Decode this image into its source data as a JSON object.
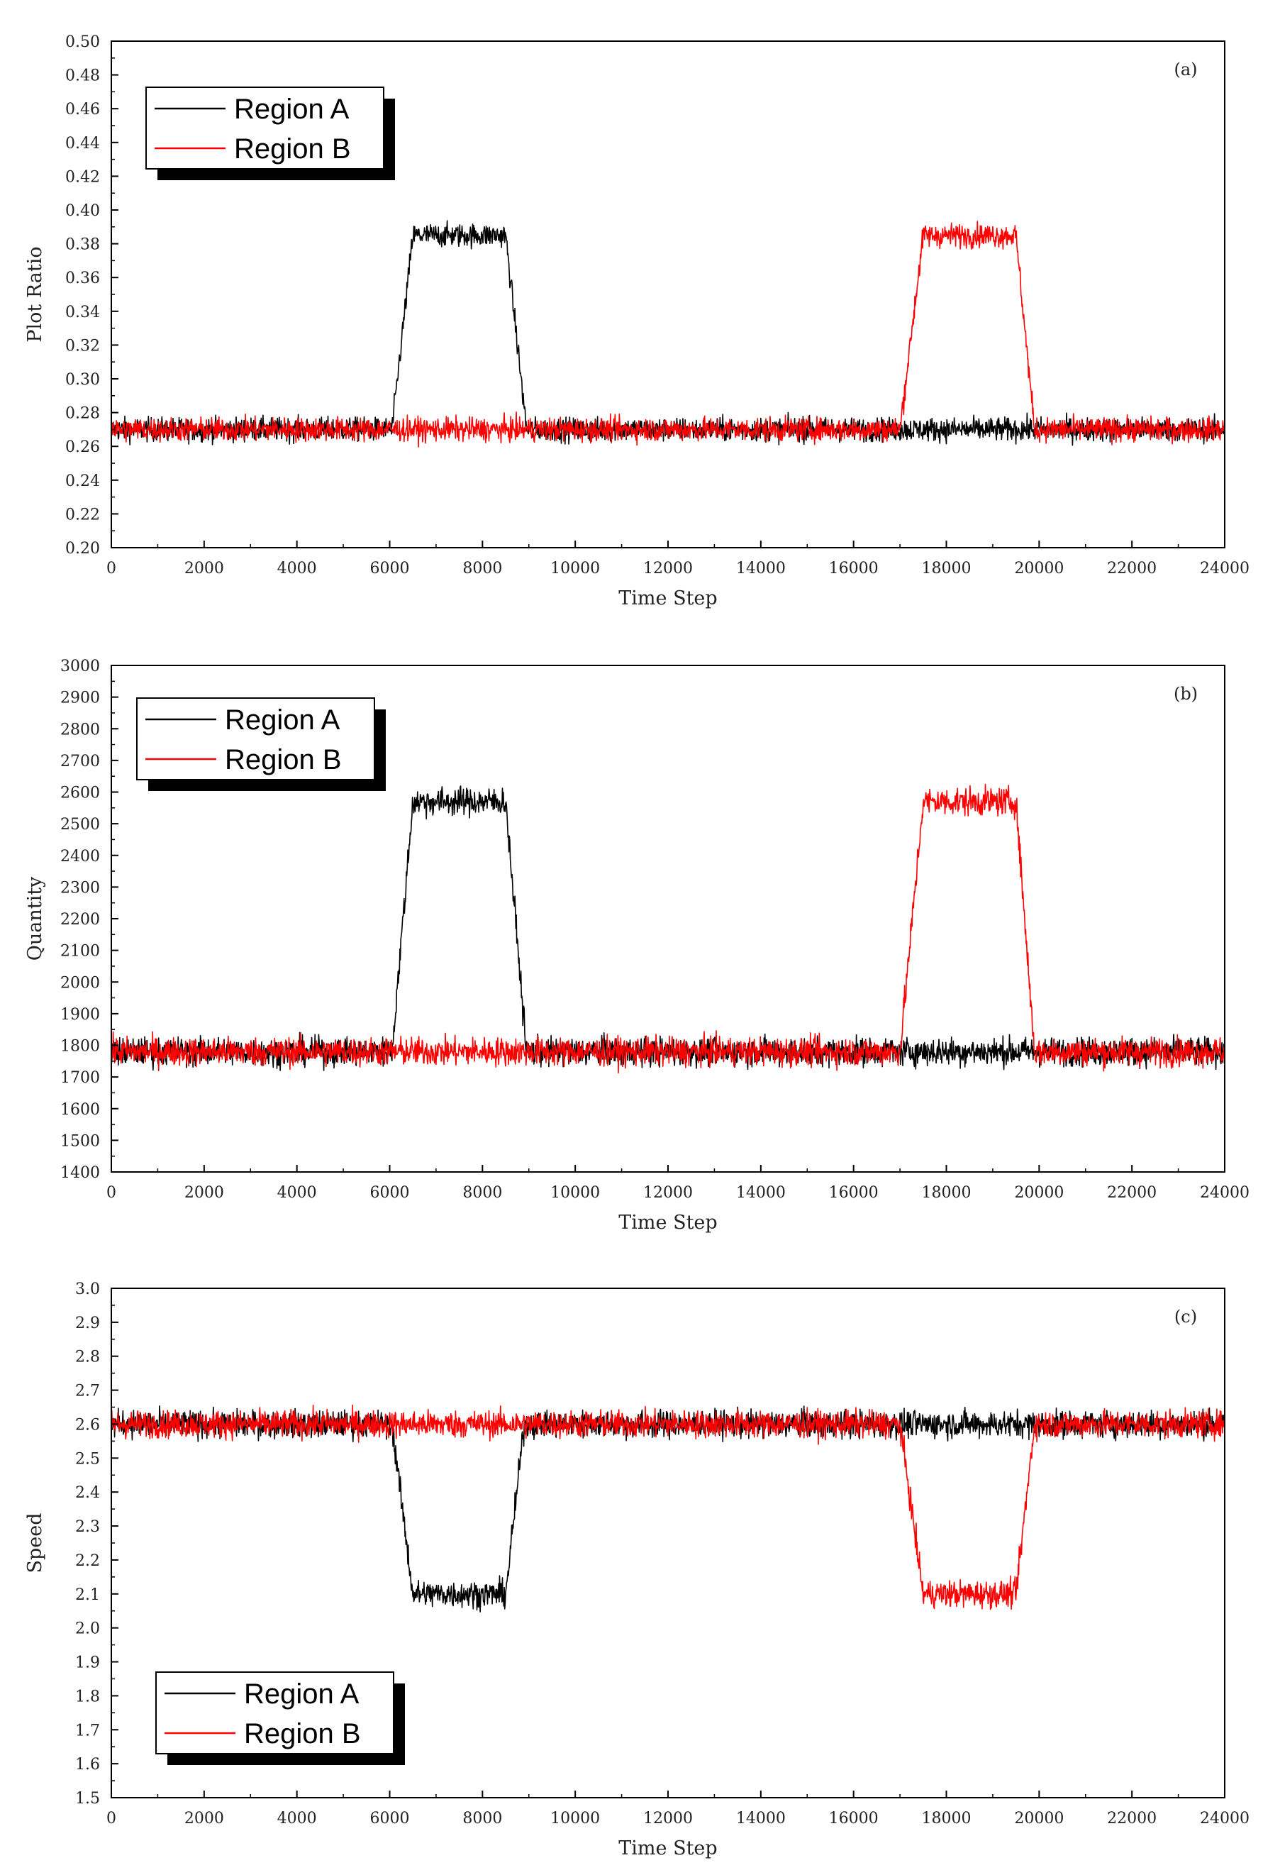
{
  "colors": {
    "region_a": "#000000",
    "region_b": "#ff0000"
  },
  "chart_data": [
    {
      "type": "line",
      "panel_label": "(a)",
      "xlabel": "Time Step",
      "ylabel": "Plot Ratio",
      "xlim": [
        0,
        24000
      ],
      "ylim": [
        0.2,
        0.5
      ],
      "xticks": [
        "0",
        "2000",
        "4000",
        "6000",
        "8000",
        "10000",
        "12000",
        "14000",
        "16000",
        "18000",
        "20000",
        "22000",
        "24000"
      ],
      "yticks": [
        "0.20",
        "0.22",
        "0.24",
        "0.26",
        "0.28",
        "0.30",
        "0.32",
        "0.34",
        "0.36",
        "0.38",
        "0.40",
        "0.42",
        "0.44",
        "0.46",
        "0.48",
        "0.50"
      ],
      "legend": [
        "Region A",
        "Region B"
      ],
      "legend_position": "top-left",
      "noise": 0.007,
      "series": [
        {
          "name": "Region A",
          "color": "#000000",
          "x": [
            0,
            6050,
            6500,
            8500,
            8950,
            17000,
            17050,
            19850,
            19900,
            24000
          ],
          "y": [
            0.27,
            0.27,
            0.385,
            0.385,
            0.27,
            0.27,
            0.27,
            0.27,
            0.27,
            0.27
          ]
        },
        {
          "name": "Region B",
          "color": "#ff0000",
          "x": [
            0,
            17000,
            17500,
            19500,
            19900,
            24000
          ],
          "y": [
            0.27,
            0.27,
            0.385,
            0.385,
            0.27,
            0.27
          ]
        }
      ]
    },
    {
      "type": "line",
      "panel_label": "(b)",
      "xlabel": "Time Step",
      "ylabel": "Quantity",
      "xlim": [
        0,
        24000
      ],
      "ylim": [
        1400,
        3000
      ],
      "xticks": [
        "0",
        "2000",
        "4000",
        "6000",
        "8000",
        "10000",
        "12000",
        "14000",
        "16000",
        "18000",
        "20000",
        "22000",
        "24000"
      ],
      "yticks": [
        "1400",
        "1500",
        "1600",
        "1700",
        "1800",
        "1900",
        "2000",
        "2100",
        "2200",
        "2300",
        "2400",
        "2500",
        "2600",
        "2700",
        "2800",
        "2900",
        "3000"
      ],
      "legend": [
        "Region A",
        "Region B"
      ],
      "legend_position": "top-left",
      "noise": 45,
      "series": [
        {
          "name": "Region A",
          "color": "#000000",
          "x": [
            0,
            6050,
            6500,
            8500,
            8950,
            24000
          ],
          "y": [
            1780,
            1780,
            2570,
            2570,
            1780,
            1780
          ]
        },
        {
          "name": "Region B",
          "color": "#ff0000",
          "x": [
            0,
            17000,
            17500,
            19500,
            19900,
            24000
          ],
          "y": [
            1780,
            1780,
            2570,
            2570,
            1780,
            1780
          ]
        }
      ]
    },
    {
      "type": "line",
      "panel_label": "(c)",
      "xlabel": "Time Step",
      "ylabel": "Speed",
      "xlim": [
        0,
        24000
      ],
      "ylim": [
        1.5,
        3.0
      ],
      "xticks": [
        "0",
        "2000",
        "4000",
        "6000",
        "8000",
        "10000",
        "12000",
        "14000",
        "16000",
        "18000",
        "20000",
        "22000",
        "24000"
      ],
      "yticks": [
        "1.5",
        "1.6",
        "1.7",
        "1.8",
        "1.9",
        "2.0",
        "2.1",
        "2.2",
        "2.3",
        "2.4",
        "2.5",
        "2.6",
        "2.7",
        "2.8",
        "2.9",
        "3.0"
      ],
      "legend": [
        "Region A",
        "Region B"
      ],
      "legend_position": "bottom-left",
      "noise": 0.04,
      "series": [
        {
          "name": "Region A",
          "color": "#000000",
          "x": [
            0,
            6050,
            6500,
            8500,
            8900,
            24000
          ],
          "y": [
            2.6,
            2.6,
            2.1,
            2.1,
            2.6,
            2.6
          ]
        },
        {
          "name": "Region B",
          "color": "#ff0000",
          "x": [
            0,
            17000,
            17500,
            19500,
            19900,
            24000
          ],
          "y": [
            2.6,
            2.6,
            2.1,
            2.1,
            2.6,
            2.6
          ]
        }
      ]
    }
  ]
}
